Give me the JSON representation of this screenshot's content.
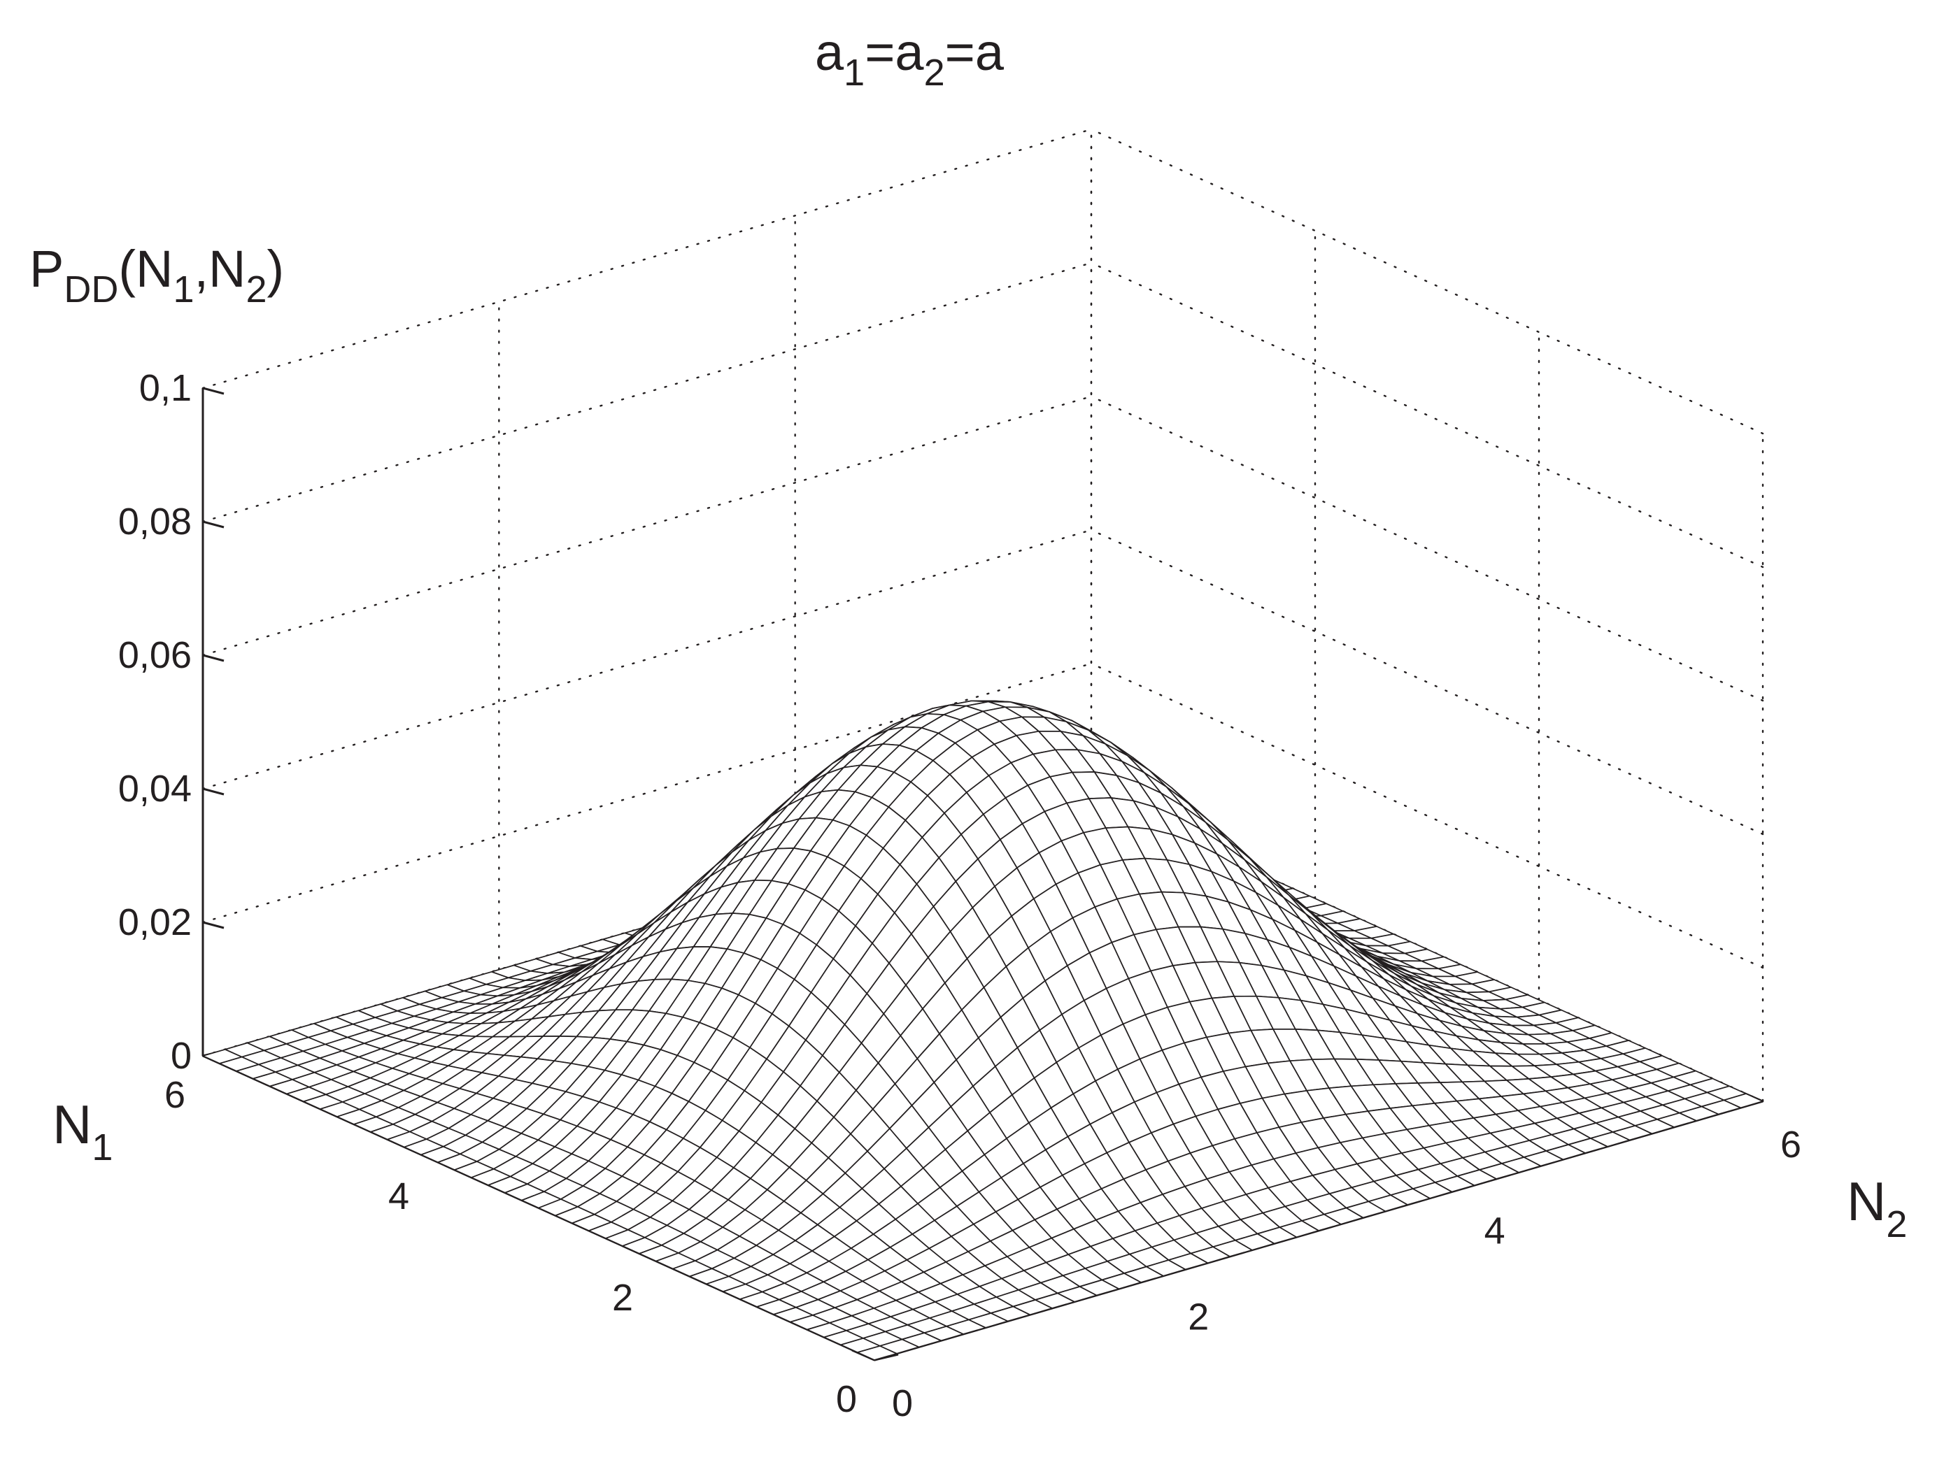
{
  "chart_data": {
    "type": "surface",
    "title": {
      "main": "a",
      "sub1": "1",
      "eq1": "=a",
      "sub2": "2",
      "eq2": "=a"
    },
    "zlabel": {
      "main": "P",
      "sub1": "DD",
      "mid1": "(N",
      "sub2": "1",
      "mid2": ",N",
      "sub3": "2",
      "end": ")"
    },
    "xlabel": {
      "main": "N",
      "sub": "2"
    },
    "ylabel": {
      "main": "N",
      "sub": "1"
    },
    "x_name": "N2",
    "y_name": "N1",
    "xlim": [
      0,
      6
    ],
    "ylim": [
      0,
      6
    ],
    "zlim": [
      0,
      0.1
    ],
    "x_ticks": [
      {
        "v": 0,
        "label": "0"
      },
      {
        "v": 2,
        "label": "2"
      },
      {
        "v": 4,
        "label": "4"
      },
      {
        "v": 6,
        "label": "6"
      }
    ],
    "y_ticks": [
      {
        "v": 0,
        "label": "0"
      },
      {
        "v": 2,
        "label": "2"
      },
      {
        "v": 4,
        "label": "4"
      },
      {
        "v": 6,
        "label": "6"
      }
    ],
    "z_ticks": [
      {
        "v": 0,
        "label": "0"
      },
      {
        "v": 0.02,
        "label": "0,02"
      },
      {
        "v": 0.04,
        "label": "0,04"
      },
      {
        "v": 0.06,
        "label": "0,06"
      },
      {
        "v": 0.08,
        "label": "0,08"
      },
      {
        "v": 0.1,
        "label": "0,1"
      }
    ],
    "grid": true,
    "surface": {
      "description": "product of two identical sin-shaped densities in N1 and N2",
      "formula": "z = peak * sin(pi*N1/6)^2 * sin(pi*N2/6)^2",
      "peak": 0.055,
      "resolution": 40
    }
  },
  "colors": {
    "ink": "#231f20",
    "mesh_fill": "#ffffff",
    "grid": "#231f20"
  }
}
